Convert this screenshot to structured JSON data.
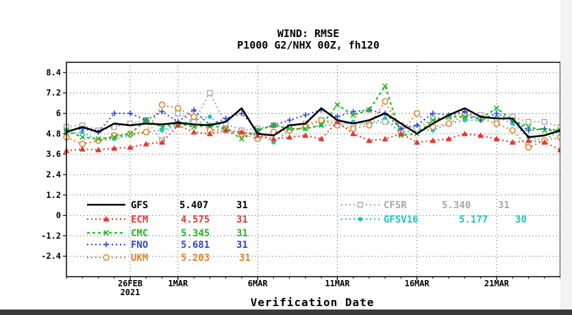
{
  "chart_data": {
    "type": "line",
    "title": "WIND: RMSE",
    "subtitle": "P1000 G2/NHX 00Z, fh120",
    "xlabel": "Verification Date",
    "ylabel": "",
    "ylim": [
      -3.6,
      9.0
    ],
    "xlim": [
      0,
      31
    ],
    "yticks": [
      "8.4",
      "7.2",
      "6",
      "4.8",
      "3.6",
      "2.4",
      "1.2",
      "0",
      "-1.2",
      "-2.4"
    ],
    "ytick_values": [
      8.4,
      7.2,
      6.0,
      4.8,
      3.6,
      2.4,
      1.2,
      0,
      -1.2,
      -2.4
    ],
    "xticks": [
      {
        "label": "26FEB",
        "sub": "2021",
        "x": 4
      },
      {
        "label": "1MAR",
        "sub": "",
        "x": 7
      },
      {
        "label": "6MAR",
        "sub": "",
        "x": 12
      },
      {
        "label": "11MAR",
        "sub": "",
        "x": 17
      },
      {
        "label": "16MAR",
        "sub": "",
        "x": 22
      },
      {
        "label": "21MAR",
        "sub": "",
        "x": 27
      }
    ],
    "grid": true,
    "series": [
      {
        "name": "GFS",
        "mean": "5.407",
        "count": "31",
        "color": "#000000",
        "marker": "none",
        "dash": "",
        "width": 2.6,
        "values": [
          4.9,
          5.2,
          4.9,
          5.4,
          5.3,
          5.4,
          5.35,
          5.45,
          5.35,
          5.3,
          5.5,
          6.3,
          4.8,
          4.7,
          5.3,
          5.4,
          6.3,
          5.6,
          5.4,
          5.6,
          6.0,
          5.4,
          4.8,
          5.4,
          5.9,
          6.3,
          5.8,
          5.7,
          5.7,
          4.6,
          4.7,
          5.0
        ]
      },
      {
        "name": "ECM",
        "mean": "4.575",
        "count": "31",
        "color": "#e8382e",
        "marker": "triangle",
        "dash": "2,4",
        "width": 2.2,
        "values": [
          3.8,
          3.9,
          3.85,
          3.95,
          4.0,
          4.2,
          4.3,
          5.3,
          4.9,
          4.8,
          5.0,
          4.9,
          4.7,
          4.5,
          4.6,
          4.7,
          4.5,
          5.5,
          4.8,
          4.4,
          4.5,
          4.8,
          4.3,
          4.4,
          4.5,
          4.8,
          4.7,
          4.5,
          4.3,
          4.4,
          4.3,
          3.85
        ]
      },
      {
        "name": "CMC",
        "mean": "5.345",
        "count": "31",
        "color": "#22b822",
        "marker": "x",
        "dash": "4,4",
        "width": 2.2,
        "values": [
          5.0,
          4.6,
          4.5,
          4.6,
          4.8,
          5.6,
          5.2,
          5.4,
          5.2,
          5.3,
          5.1,
          4.5,
          5.0,
          5.3,
          5.1,
          5.1,
          5.3,
          6.5,
          5.9,
          6.2,
          7.6,
          4.7,
          4.8,
          5.6,
          5.8,
          5.8,
          5.7,
          6.3,
          5.6,
          5.2,
          5.0,
          5.0
        ]
      },
      {
        "name": "FNO",
        "mean": "5.681",
        "count": "31",
        "color": "#2a44e0",
        "marker": "plus",
        "dash": "2,4",
        "width": 2.2,
        "values": [
          5.0,
          5.1,
          4.9,
          6.0,
          6.0,
          5.6,
          6.1,
          5.5,
          6.2,
          5.3,
          5.7,
          6.0,
          5.0,
          5.3,
          5.6,
          5.9,
          6.2,
          5.8,
          6.1,
          6.2,
          6.0,
          5.1,
          5.3,
          6.0,
          5.9,
          6.1,
          5.6,
          6.0,
          5.6,
          5.0,
          5.1,
          5.0
        ]
      },
      {
        "name": "UKM",
        "mean": "5.203",
        "count": "31",
        "color": "#e0822a",
        "marker": "circle",
        "dash": "2,4",
        "width": 2.2,
        "values": [
          4.6,
          4.2,
          4.4,
          4.7,
          4.8,
          4.9,
          6.5,
          6.3,
          5.8,
          5.0,
          5.1,
          4.8,
          4.5,
          4.9,
          5.0,
          5.2,
          5.6,
          5.3,
          5.1,
          5.3,
          6.7,
          4.9,
          6.0,
          5.2,
          5.4,
          5.9,
          5.7,
          5.4,
          5.0,
          4.0,
          4.4,
          4.6
        ]
      },
      {
        "name": "CFSR",
        "mean": "5.340",
        "count": "31",
        "color": "#a8a8a8",
        "marker": "square",
        "dash": "2,4",
        "width": 2.2,
        "values": [
          5.2,
          5.3,
          5.0,
          5.2,
          5.4,
          5.6,
          4.4,
          6.0,
          5.5,
          7.2,
          5.4,
          5.0,
          5.1,
          5.3,
          5.2,
          5.4,
          5.6,
          5.5,
          5.3,
          5.4,
          5.5,
          5.3,
          5.1,
          5.7,
          5.8,
          6.0,
          5.9,
          5.6,
          5.8,
          5.5,
          5.5,
          5.2
        ]
      },
      {
        "name": "GFSV16",
        "mean": "5.177",
        "count": "30",
        "color": "#1fc4c4",
        "marker": "dot",
        "dash": "2,4",
        "width": 2.2,
        "values": [
          4.8,
          4.9,
          4.4,
          4.5,
          4.7,
          4.9,
          5.0,
          5.3,
          5.6,
          5.8,
          5.0,
          4.9,
          4.8,
          4.3,
          5.0,
          5.1,
          5.3,
          5.3,
          5.5,
          5.4,
          5.7,
          4.8,
          5.1,
          5.0,
          5.4,
          5.6,
          5.6,
          5.8,
          5.4,
          4.6,
          4.4,
          5.0
        ]
      }
    ]
  }
}
